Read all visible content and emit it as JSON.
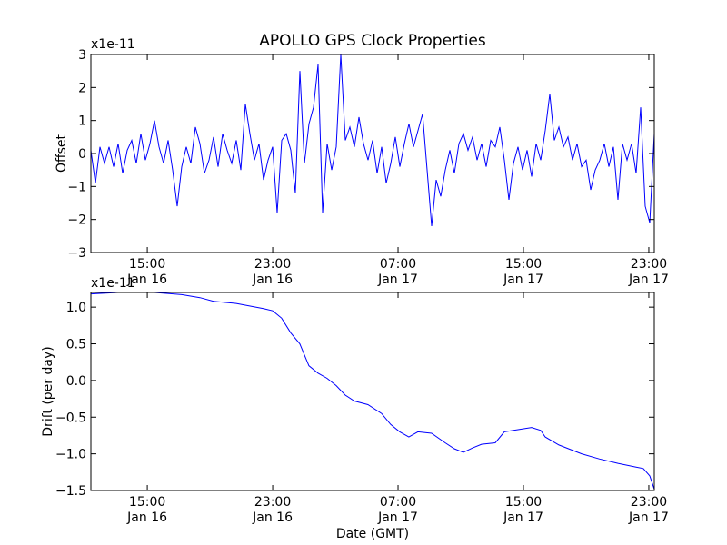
{
  "chart_data": [
    {
      "type": "line",
      "title": "APOLLO GPS Clock Properties",
      "ylabel": "Offset",
      "xlabel": "",
      "y_multiplier": "x1e-11",
      "ylim": [
        -3,
        3
      ],
      "yticks": [
        3,
        2,
        1,
        0,
        -1,
        -2,
        -3
      ],
      "ytick_labels": [
        "3",
        "2",
        "1",
        "0",
        "−1",
        "−2",
        "−3"
      ],
      "xlim_hours_from_jan16_0000": [
        11.4,
        47.35
      ],
      "xticks_hours": [
        15,
        23,
        31,
        39,
        47
      ],
      "xtick_labels": [
        [
          "15:00",
          "Jan 16"
        ],
        [
          "23:00",
          "Jan 16"
        ],
        [
          "07:00",
          "Jan 17"
        ],
        [
          "15:00",
          "Jan 17"
        ],
        [
          "23:00",
          "Jan 17"
        ]
      ],
      "color": "#0000ff",
      "series": [
        {
          "name": "Offset",
          "x_start": 11.4,
          "x_end": 47.35,
          "values": [
            0.1,
            -0.9,
            0.2,
            -0.3,
            0.2,
            -0.4,
            0.3,
            -0.6,
            0.1,
            0.4,
            -0.3,
            0.6,
            -0.2,
            0.3,
            1.0,
            0.2,
            -0.3,
            0.4,
            -0.5,
            -1.6,
            -0.4,
            0.2,
            -0.3,
            0.8,
            0.3,
            -0.6,
            -0.2,
            0.5,
            -0.4,
            0.6,
            0.1,
            -0.3,
            0.4,
            -0.5,
            1.5,
            0.6,
            -0.2,
            0.3,
            -0.8,
            -0.2,
            0.2,
            -1.8,
            0.4,
            0.6,
            0.1,
            -1.2,
            2.5,
            -0.3,
            0.9,
            1.4,
            2.7,
            -1.8,
            0.3,
            -0.5,
            0.2,
            3.0,
            0.4,
            0.8,
            0.2,
            1.1,
            0.3,
            -0.2,
            0.4,
            -0.6,
            0.2,
            -0.9,
            -0.3,
            0.5,
            -0.4,
            0.3,
            0.9,
            0.2,
            0.7,
            1.2,
            -0.5,
            -2.2,
            -0.8,
            -1.3,
            -0.5,
            0.1,
            -0.6,
            0.3,
            0.6,
            0.1,
            0.5,
            -0.2,
            0.3,
            -0.4,
            0.4,
            0.2,
            0.8,
            -0.2,
            -1.4,
            -0.3,
            0.2,
            -0.5,
            0.1,
            -0.7,
            0.3,
            -0.2,
            0.7,
            1.8,
            0.4,
            0.8,
            0.2,
            0.5,
            -0.2,
            0.3,
            -0.4,
            -0.2,
            -1.1,
            -0.5,
            -0.2,
            0.3,
            -0.4,
            0.2,
            -1.4,
            0.3,
            -0.2,
            0.3,
            -0.6,
            1.4,
            -1.6,
            -2.1,
            0.6
          ]
        }
      ]
    },
    {
      "type": "line",
      "title": "",
      "ylabel": "Drift (per day)",
      "xlabel": "Date (GMT)",
      "y_multiplier": "x1e-11",
      "ylim": [
        -1.5,
        1.2
      ],
      "yticks": [
        1.0,
        0.5,
        0.0,
        -0.5,
        -1.0,
        -1.5
      ],
      "ytick_labels": [
        "1.0",
        "0.5",
        "0.0",
        "−0.5",
        "−1.0",
        "−1.5"
      ],
      "xlim_hours_from_jan16_0000": [
        11.4,
        47.35
      ],
      "xticks_hours": [
        15,
        23,
        31,
        39,
        47
      ],
      "xtick_labels": [
        [
          "15:00",
          "Jan 16"
        ],
        [
          "23:00",
          "Jan 16"
        ],
        [
          "07:00",
          "Jan 17"
        ],
        [
          "15:00",
          "Jan 17"
        ],
        [
          "23:00",
          "Jan 17"
        ]
      ],
      "color": "#0000ff",
      "series": [
        {
          "name": "Drift",
          "x": [
            11.4,
            13.14,
            15.46,
            17.2,
            18.36,
            19.23,
            20.68,
            22.41,
            23.0,
            23.57,
            24.15,
            24.73,
            25.31,
            25.89,
            26.47,
            27.05,
            27.63,
            28.21,
            29.08,
            29.95,
            30.53,
            31.11,
            31.69,
            32.27,
            33.14,
            34.01,
            34.59,
            35.17,
            35.75,
            36.33,
            37.2,
            37.78,
            38.65,
            39.52,
            40.1,
            40.39,
            41.26,
            42.71,
            43.86,
            45.03,
            46.19,
            46.65,
            47.06,
            47.35
          ],
          "y": [
            1.18,
            1.2,
            1.2,
            1.17,
            1.13,
            1.08,
            1.05,
            0.98,
            0.95,
            0.85,
            0.65,
            0.5,
            0.2,
            0.1,
            0.03,
            -0.07,
            -0.2,
            -0.28,
            -0.33,
            -0.45,
            -0.6,
            -0.7,
            -0.77,
            -0.7,
            -0.72,
            -0.85,
            -0.93,
            -0.98,
            -0.92,
            -0.87,
            -0.85,
            -0.7,
            -0.67,
            -0.64,
            -0.68,
            -0.77,
            -0.88,
            -1.0,
            -1.07,
            -1.13,
            -1.18,
            -1.2,
            -1.3,
            -1.48
          ]
        }
      ]
    }
  ]
}
